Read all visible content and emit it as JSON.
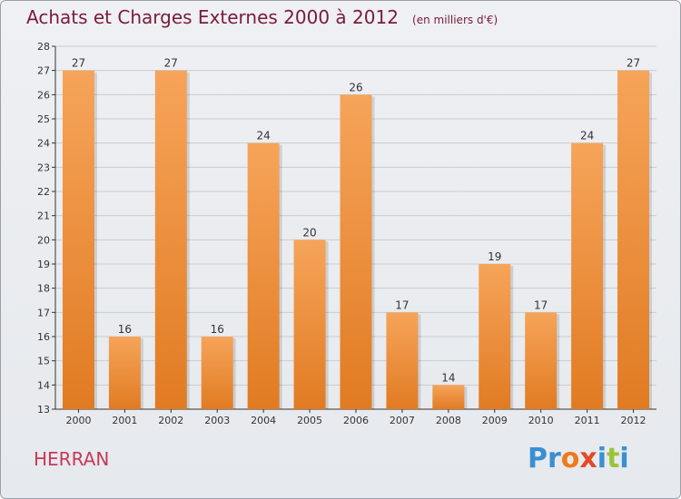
{
  "header": {
    "title": "Achats et Charges Externes 2000 à 2012",
    "subtitle": "(en milliers d'€)"
  },
  "footer": {
    "commune": "HERRAN",
    "brand_letters": [
      "P",
      "r",
      "o",
      "x",
      "i",
      "t",
      "i"
    ],
    "brand_colors": [
      "#3a8fd0",
      "#3a8fd0",
      "#f07a1a",
      "#e24a2a",
      "#3a8fd0",
      "#9ac33a",
      "#3a8fd0"
    ]
  },
  "colors": {
    "bar_light": "#f6a45a",
    "bar_dark": "#e17b22",
    "axis": "#333333",
    "grid": "#c9ccd1"
  },
  "chart_data": {
    "type": "bar",
    "categories": [
      "2000",
      "2001",
      "2002",
      "2003",
      "2004",
      "2005",
      "2006",
      "2007",
      "2008",
      "2009",
      "2010",
      "2011",
      "2012"
    ],
    "values": [
      27,
      16,
      27,
      16,
      24,
      20,
      26,
      17,
      14,
      19,
      17,
      24,
      27
    ],
    "data_labels": [
      "27",
      "16",
      "27",
      "16",
      "24",
      "20",
      "26",
      "17",
      "14",
      "19",
      "17",
      "24",
      "27"
    ],
    "yticks": [
      "13",
      "14",
      "15",
      "16",
      "17",
      "18",
      "19",
      "20",
      "21",
      "22",
      "23",
      "24",
      "25",
      "26",
      "27",
      "28"
    ],
    "ylim": [
      13,
      28
    ],
    "grid": true,
    "title": "Achats et Charges Externes 2000 à 2012",
    "xlabel": "",
    "ylabel": ""
  }
}
